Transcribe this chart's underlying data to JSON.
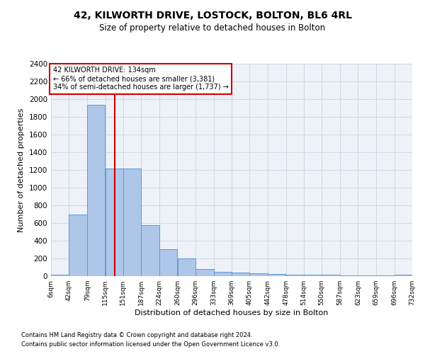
{
  "title": "42, KILWORTH DRIVE, LOSTOCK, BOLTON, BL6 4RL",
  "subtitle": "Size of property relative to detached houses in Bolton",
  "xlabel": "Distribution of detached houses by size in Bolton",
  "ylabel": "Number of detached properties",
  "footnote1": "Contains HM Land Registry data © Crown copyright and database right 2024.",
  "footnote2": "Contains public sector information licensed under the Open Government Licence v3.0.",
  "property_label": "42 KILWORTH DRIVE: 134sqm",
  "annotation_line1": "← 66% of detached houses are smaller (3,381)",
  "annotation_line2": "34% of semi-detached houses are larger (1,737) →",
  "property_size_sqm": 134,
  "bar_left_edges": [
    6,
    42,
    79,
    115,
    151,
    187,
    224,
    260,
    296,
    333,
    369,
    405,
    442,
    478,
    514,
    550,
    587,
    623,
    659,
    696
  ],
  "bar_widths": [
    36,
    37,
    36,
    36,
    36,
    37,
    36,
    36,
    37,
    36,
    36,
    37,
    36,
    36,
    36,
    37,
    36,
    36,
    37,
    36
  ],
  "bar_heights": [
    20,
    700,
    1940,
    1220,
    1220,
    580,
    305,
    200,
    80,
    45,
    40,
    35,
    25,
    20,
    15,
    20,
    10,
    5,
    5,
    20
  ],
  "bar_color": "#aec6e8",
  "bar_edge_color": "#5b9bd5",
  "vline_color": "#cc0000",
  "vline_x": 134,
  "annotation_box_color": "#cc0000",
  "background_color": "#ffffff",
  "grid_color": "#d0d8e8",
  "ylim": [
    0,
    2400
  ],
  "yticks": [
    0,
    200,
    400,
    600,
    800,
    1000,
    1200,
    1400,
    1600,
    1800,
    2000,
    2200,
    2400
  ],
  "xtick_labels": [
    "6sqm",
    "42sqm",
    "79sqm",
    "115sqm",
    "151sqm",
    "187sqm",
    "224sqm",
    "260sqm",
    "296sqm",
    "333sqm",
    "369sqm",
    "405sqm",
    "442sqm",
    "478sqm",
    "514sqm",
    "550sqm",
    "587sqm",
    "623sqm",
    "659sqm",
    "696sqm",
    "732sqm"
  ],
  "xtick_positions": [
    6,
    42,
    79,
    115,
    151,
    187,
    224,
    260,
    296,
    333,
    369,
    405,
    442,
    478,
    514,
    550,
    587,
    623,
    659,
    696,
    732
  ]
}
